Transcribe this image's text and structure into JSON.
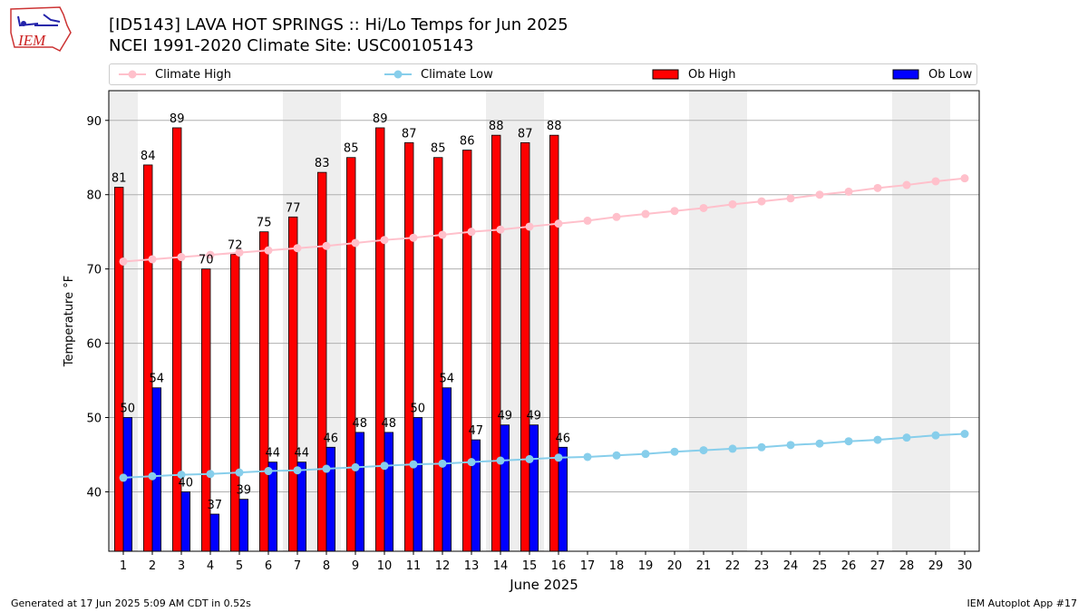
{
  "header": {
    "title_line1": "[ID5143] LAVA HOT SPRINGS :: Hi/Lo Temps for Jun 2025",
    "title_line2": "NCEI 1991-2020 Climate Site: USC00105143",
    "logo_text": "IEM"
  },
  "footer": {
    "left": "Generated at 17 Jun 2025 5:09 AM CDT in 0.52s",
    "right": "IEM Autoplot App #17"
  },
  "colors": {
    "ob_high": "#ff0000",
    "ob_low": "#0000ff",
    "climate_high": "#ffc0cb",
    "climate_low": "#87ceeb",
    "weekend_shade": "#eeeeee",
    "grid": "#b0b0b0"
  },
  "chart_data": {
    "type": "bar",
    "xlabel": "June 2025",
    "ylabel": "Temperature °F",
    "ylim": [
      32,
      94
    ],
    "xlim": [
      0.5,
      30.5
    ],
    "yticks": [
      40,
      50,
      60,
      70,
      80,
      90
    ],
    "days": [
      1,
      2,
      3,
      4,
      5,
      6,
      7,
      8,
      9,
      10,
      11,
      12,
      13,
      14,
      15,
      16,
      17,
      18,
      19,
      20,
      21,
      22,
      23,
      24,
      25,
      26,
      27,
      28,
      29,
      30
    ],
    "weekend_days": [
      1,
      7,
      8,
      14,
      15,
      21,
      22,
      28,
      29
    ],
    "grid": "y",
    "legend_position": "top",
    "series": [
      {
        "name": "Climate High",
        "type": "line",
        "values": [
          71.0,
          71.3,
          71.6,
          71.9,
          72.2,
          72.5,
          72.8,
          73.1,
          73.5,
          73.9,
          74.2,
          74.6,
          75.0,
          75.3,
          75.7,
          76.1,
          76.5,
          77.0,
          77.4,
          77.8,
          78.2,
          78.7,
          79.1,
          79.5,
          80.0,
          80.4,
          80.9,
          81.3,
          81.8,
          82.2
        ]
      },
      {
        "name": "Climate Low",
        "type": "line",
        "values": [
          41.9,
          42.1,
          42.3,
          42.4,
          42.6,
          42.8,
          42.9,
          43.1,
          43.3,
          43.5,
          43.7,
          43.8,
          44.0,
          44.2,
          44.4,
          44.6,
          44.7,
          44.9,
          45.1,
          45.4,
          45.6,
          45.8,
          46.0,
          46.3,
          46.5,
          46.8,
          47.0,
          47.3,
          47.6,
          47.8
        ]
      },
      {
        "name": "Ob High",
        "type": "bar",
        "values": [
          81,
          84,
          89,
          70,
          72,
          75,
          77,
          83,
          85,
          89,
          87,
          85,
          86,
          88,
          87,
          88
        ]
      },
      {
        "name": "Ob Low",
        "type": "bar",
        "values": [
          50,
          54,
          40,
          37,
          39,
          44,
          44,
          46,
          48,
          48,
          50,
          54,
          47,
          49,
          49,
          46
        ]
      }
    ]
  }
}
